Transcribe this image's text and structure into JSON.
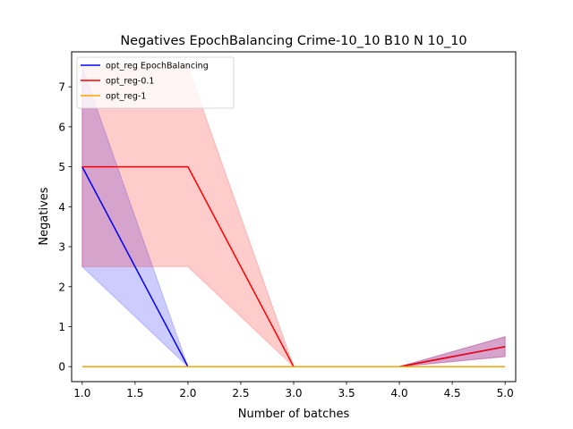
{
  "chart_data": {
    "type": "line",
    "title": "Negatives EpochBalancing Crime-10_10 B10 N 10_10",
    "xlabel": "Number of batches",
    "ylabel": "Negatives",
    "xlim": [
      0.9,
      5.1
    ],
    "ylim": [
      -0.375,
      7.875
    ],
    "xticks": [
      1.0,
      1.5,
      2.0,
      2.5,
      3.0,
      3.5,
      4.0,
      4.5,
      5.0
    ],
    "xtick_labels": [
      "1.0",
      "1.5",
      "2.0",
      "2.5",
      "3.0",
      "3.5",
      "4.0",
      "4.5",
      "5.0"
    ],
    "yticks": [
      0,
      1,
      2,
      3,
      4,
      5,
      6,
      7
    ],
    "ytick_labels": [
      "0",
      "1",
      "2",
      "3",
      "4",
      "5",
      "6",
      "7"
    ],
    "grid": false,
    "legend_position": "upper-left",
    "x": [
      1,
      2,
      3,
      4,
      5
    ],
    "series": [
      {
        "name": "opt_reg EpochBalancing",
        "color": "#0000ff",
        "values": [
          5.0,
          0.0,
          0.0,
          0.0,
          0.5
        ],
        "band_lower": [
          2.5,
          0.0,
          0.0,
          0.0,
          0.25
        ],
        "band_upper": [
          7.5,
          0.0,
          0.0,
          0.0,
          0.75
        ]
      },
      {
        "name": "opt_reg-0.1",
        "color": "#ff0000",
        "values": [
          5.0,
          5.0,
          0.0,
          0.0,
          0.5
        ],
        "band_lower": [
          2.5,
          2.5,
          0.0,
          0.0,
          0.25
        ],
        "band_upper": [
          7.5,
          7.5,
          0.0,
          0.0,
          0.75
        ]
      },
      {
        "name": "opt_reg-1",
        "color": "#ffa500",
        "values": [
          0.0,
          0.0,
          0.0,
          0.0,
          0.0
        ],
        "band_lower": [
          0.0,
          0.0,
          0.0,
          0.0,
          0.0
        ],
        "band_upper": [
          0.0,
          0.0,
          0.0,
          0.0,
          0.0
        ]
      }
    ]
  }
}
